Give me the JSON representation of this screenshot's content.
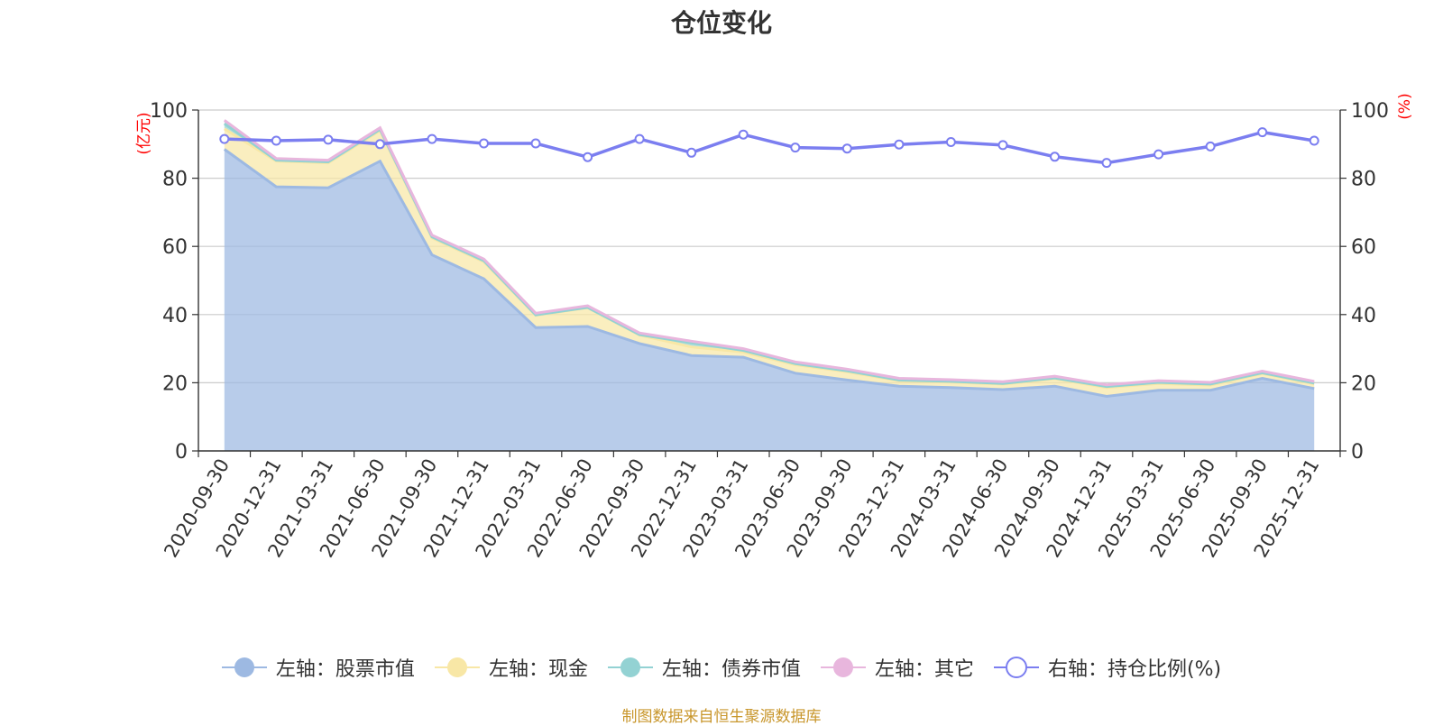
{
  "title": "仓位变化",
  "source": "制图数据来自恒生聚源数据库",
  "colors": {
    "stock": "#9db9e2",
    "cash": "#f8e7a6",
    "bond": "#93d2d3",
    "other": "#e8b6dd",
    "ratio": "#7b7ef0",
    "axis_unit": "#ff0000",
    "grid": "#cccccc",
    "axis": "#333333",
    "source": "#c8962b"
  },
  "chart_data": {
    "type": "area",
    "title": "仓位变化",
    "left_unit": "(亿元)",
    "right_unit": "(%)",
    "left_ylim": [
      0,
      100
    ],
    "right_ylim": [
      0,
      100
    ],
    "y_ticks": [
      "0",
      "20",
      "40",
      "60",
      "80",
      "100"
    ],
    "grid": true,
    "legend_position": "bottom",
    "categories": [
      "2020-09-30",
      "2020-12-31",
      "2021-03-31",
      "2021-06-30",
      "2021-09-30",
      "2021-12-31",
      "2022-03-31",
      "2022-06-30",
      "2022-09-30",
      "2022-12-31",
      "2023-03-31",
      "2023-06-30",
      "2023-09-30",
      "2023-12-31",
      "2024-03-31",
      "2024-06-30",
      "2024-09-30",
      "2024-12-31",
      "2025-03-31",
      "2025-06-30",
      "2025-09-30",
      "2025-12-31"
    ],
    "series": [
      {
        "name": "左轴：股票市值",
        "axis": "left",
        "color_key": "stock",
        "values": [
          88.5,
          77.5,
          77.2,
          85.0,
          57.5,
          50.5,
          36.2,
          36.5,
          31.5,
          28.0,
          27.5,
          22.8,
          20.8,
          19.0,
          18.6,
          18.0,
          19.0,
          16.0,
          17.8,
          17.8,
          21.3,
          18.3
        ]
      },
      {
        "name": "左轴：现金",
        "axis": "left",
        "color_key": "cash",
        "values": [
          6.0,
          7.5,
          7.3,
          9.0,
          5.0,
          5.0,
          3.6,
          5.5,
          2.5,
          2.5,
          1.5,
          2.5,
          2.4,
          1.6,
          1.6,
          1.6,
          2.2,
          2.6,
          2.0,
          1.5,
          1.4,
          1.4
        ]
      },
      {
        "name": "左轴：债券市值",
        "axis": "left",
        "color_key": "bond",
        "values": [
          1.5,
          0.3,
          0.3,
          0.3,
          0.3,
          0.3,
          0.1,
          0.1,
          0.1,
          1.2,
          0.5,
          0.3,
          0.3,
          0.2,
          0.2,
          0.2,
          0.2,
          0.3,
          0.3,
          0.3,
          0.2,
          0.2
        ]
      },
      {
        "name": "左轴：其它",
        "axis": "left",
        "color_key": "other",
        "values": [
          1.0,
          0.5,
          0.5,
          0.5,
          0.5,
          0.5,
          0.5,
          0.5,
          0.5,
          0.5,
          0.5,
          0.5,
          0.5,
          0.5,
          0.5,
          0.5,
          0.5,
          0.5,
          0.5,
          0.5,
          0.5,
          0.5
        ]
      },
      {
        "name": "右轴：持仓比例(%)",
        "axis": "right",
        "color_key": "ratio",
        "values": [
          91.5,
          91.0,
          91.3,
          90.0,
          91.5,
          90.2,
          90.2,
          86.2,
          91.5,
          87.5,
          92.8,
          89.0,
          88.7,
          89.9,
          90.6,
          89.7,
          86.3,
          84.5,
          87.0,
          89.3,
          93.5,
          91.0
        ]
      }
    ]
  }
}
